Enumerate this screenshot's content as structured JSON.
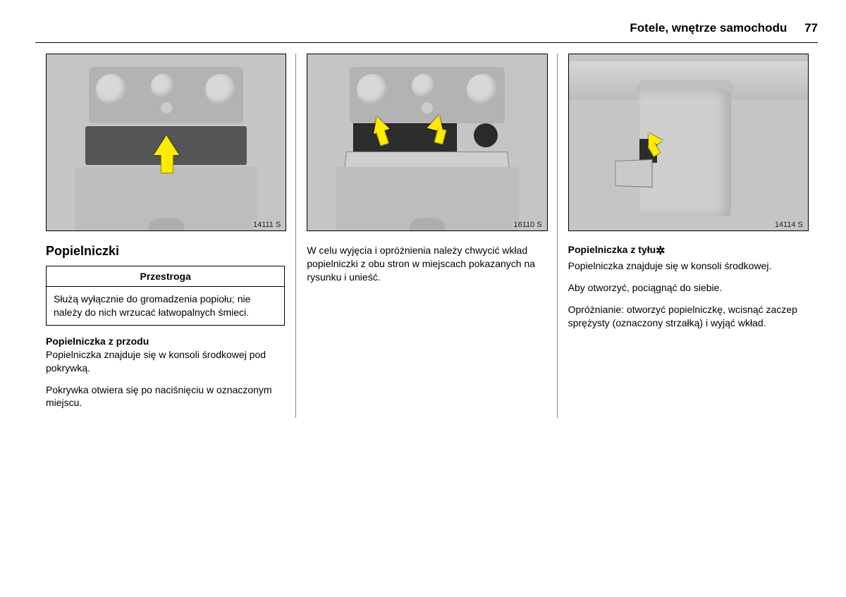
{
  "header": {
    "section_title": "Fotele, wnętrze samochodu",
    "page_number": "77"
  },
  "col1": {
    "figure_label": "14111 S",
    "heading": "Popielniczki",
    "caution_title": "Przestroga",
    "caution_body": "Służą wyłącznie do gromadzenia popiołu; nie należy do nich wrzucać łatwopalnych śmieci.",
    "subheading": "Popielniczka z przodu",
    "para1": "Popielniczka znajduje się w konsoli środkowej pod pokrywką.",
    "para2": "Pokrywka otwiera się po naciśnięciu w oznaczonym miejscu."
  },
  "col2": {
    "figure_label": "16110 S",
    "para1": "W celu wyjęcia i opróżnienia należy chwycić wkład popielniczki z obu stron w miejscach pokazanych na rysunku i unieść."
  },
  "col3": {
    "figure_label": "14114 S",
    "subheading": "Popielniczka z tyłu",
    "star": "✲",
    "para1": "Popielniczka znajduje się w konsoli środkowej.",
    "para2": "Aby otworzyć, pociągnąć do siebie.",
    "para3": "Opróżnianie: otworzyć popielniczkę, wcisnąć zaczep sprężysty (oznaczony strzałką) i wyjąć wkład."
  }
}
